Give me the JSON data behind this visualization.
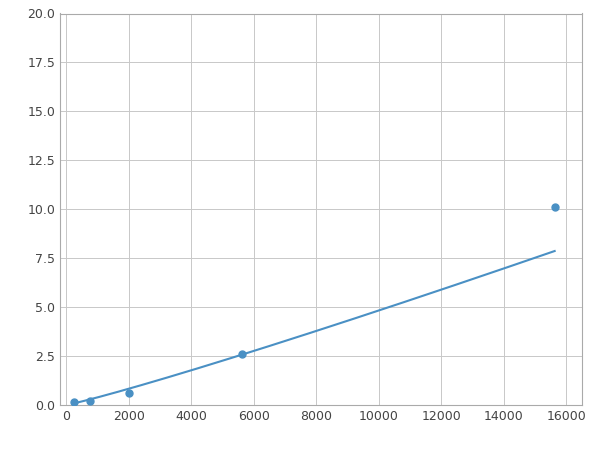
{
  "x": [
    250,
    750,
    2000,
    5625,
    15625
  ],
  "y": [
    0.13,
    0.2,
    0.6,
    2.6,
    10.1
  ],
  "line_color": "#4a90c4",
  "marker_color": "#4a90c4",
  "marker_size": 5,
  "line_width": 1.5,
  "xlim": [
    -200,
    16500
  ],
  "ylim": [
    0,
    20
  ],
  "xticks": [
    0,
    2000,
    4000,
    6000,
    8000,
    10000,
    12000,
    14000,
    16000
  ],
  "yticks": [
    0.0,
    2.5,
    5.0,
    7.5,
    10.0,
    12.5,
    15.0,
    17.5,
    20.0
  ],
  "grid_color": "#c8c8c8",
  "background_color": "#ffffff",
  "figure_bg": "#ffffff"
}
